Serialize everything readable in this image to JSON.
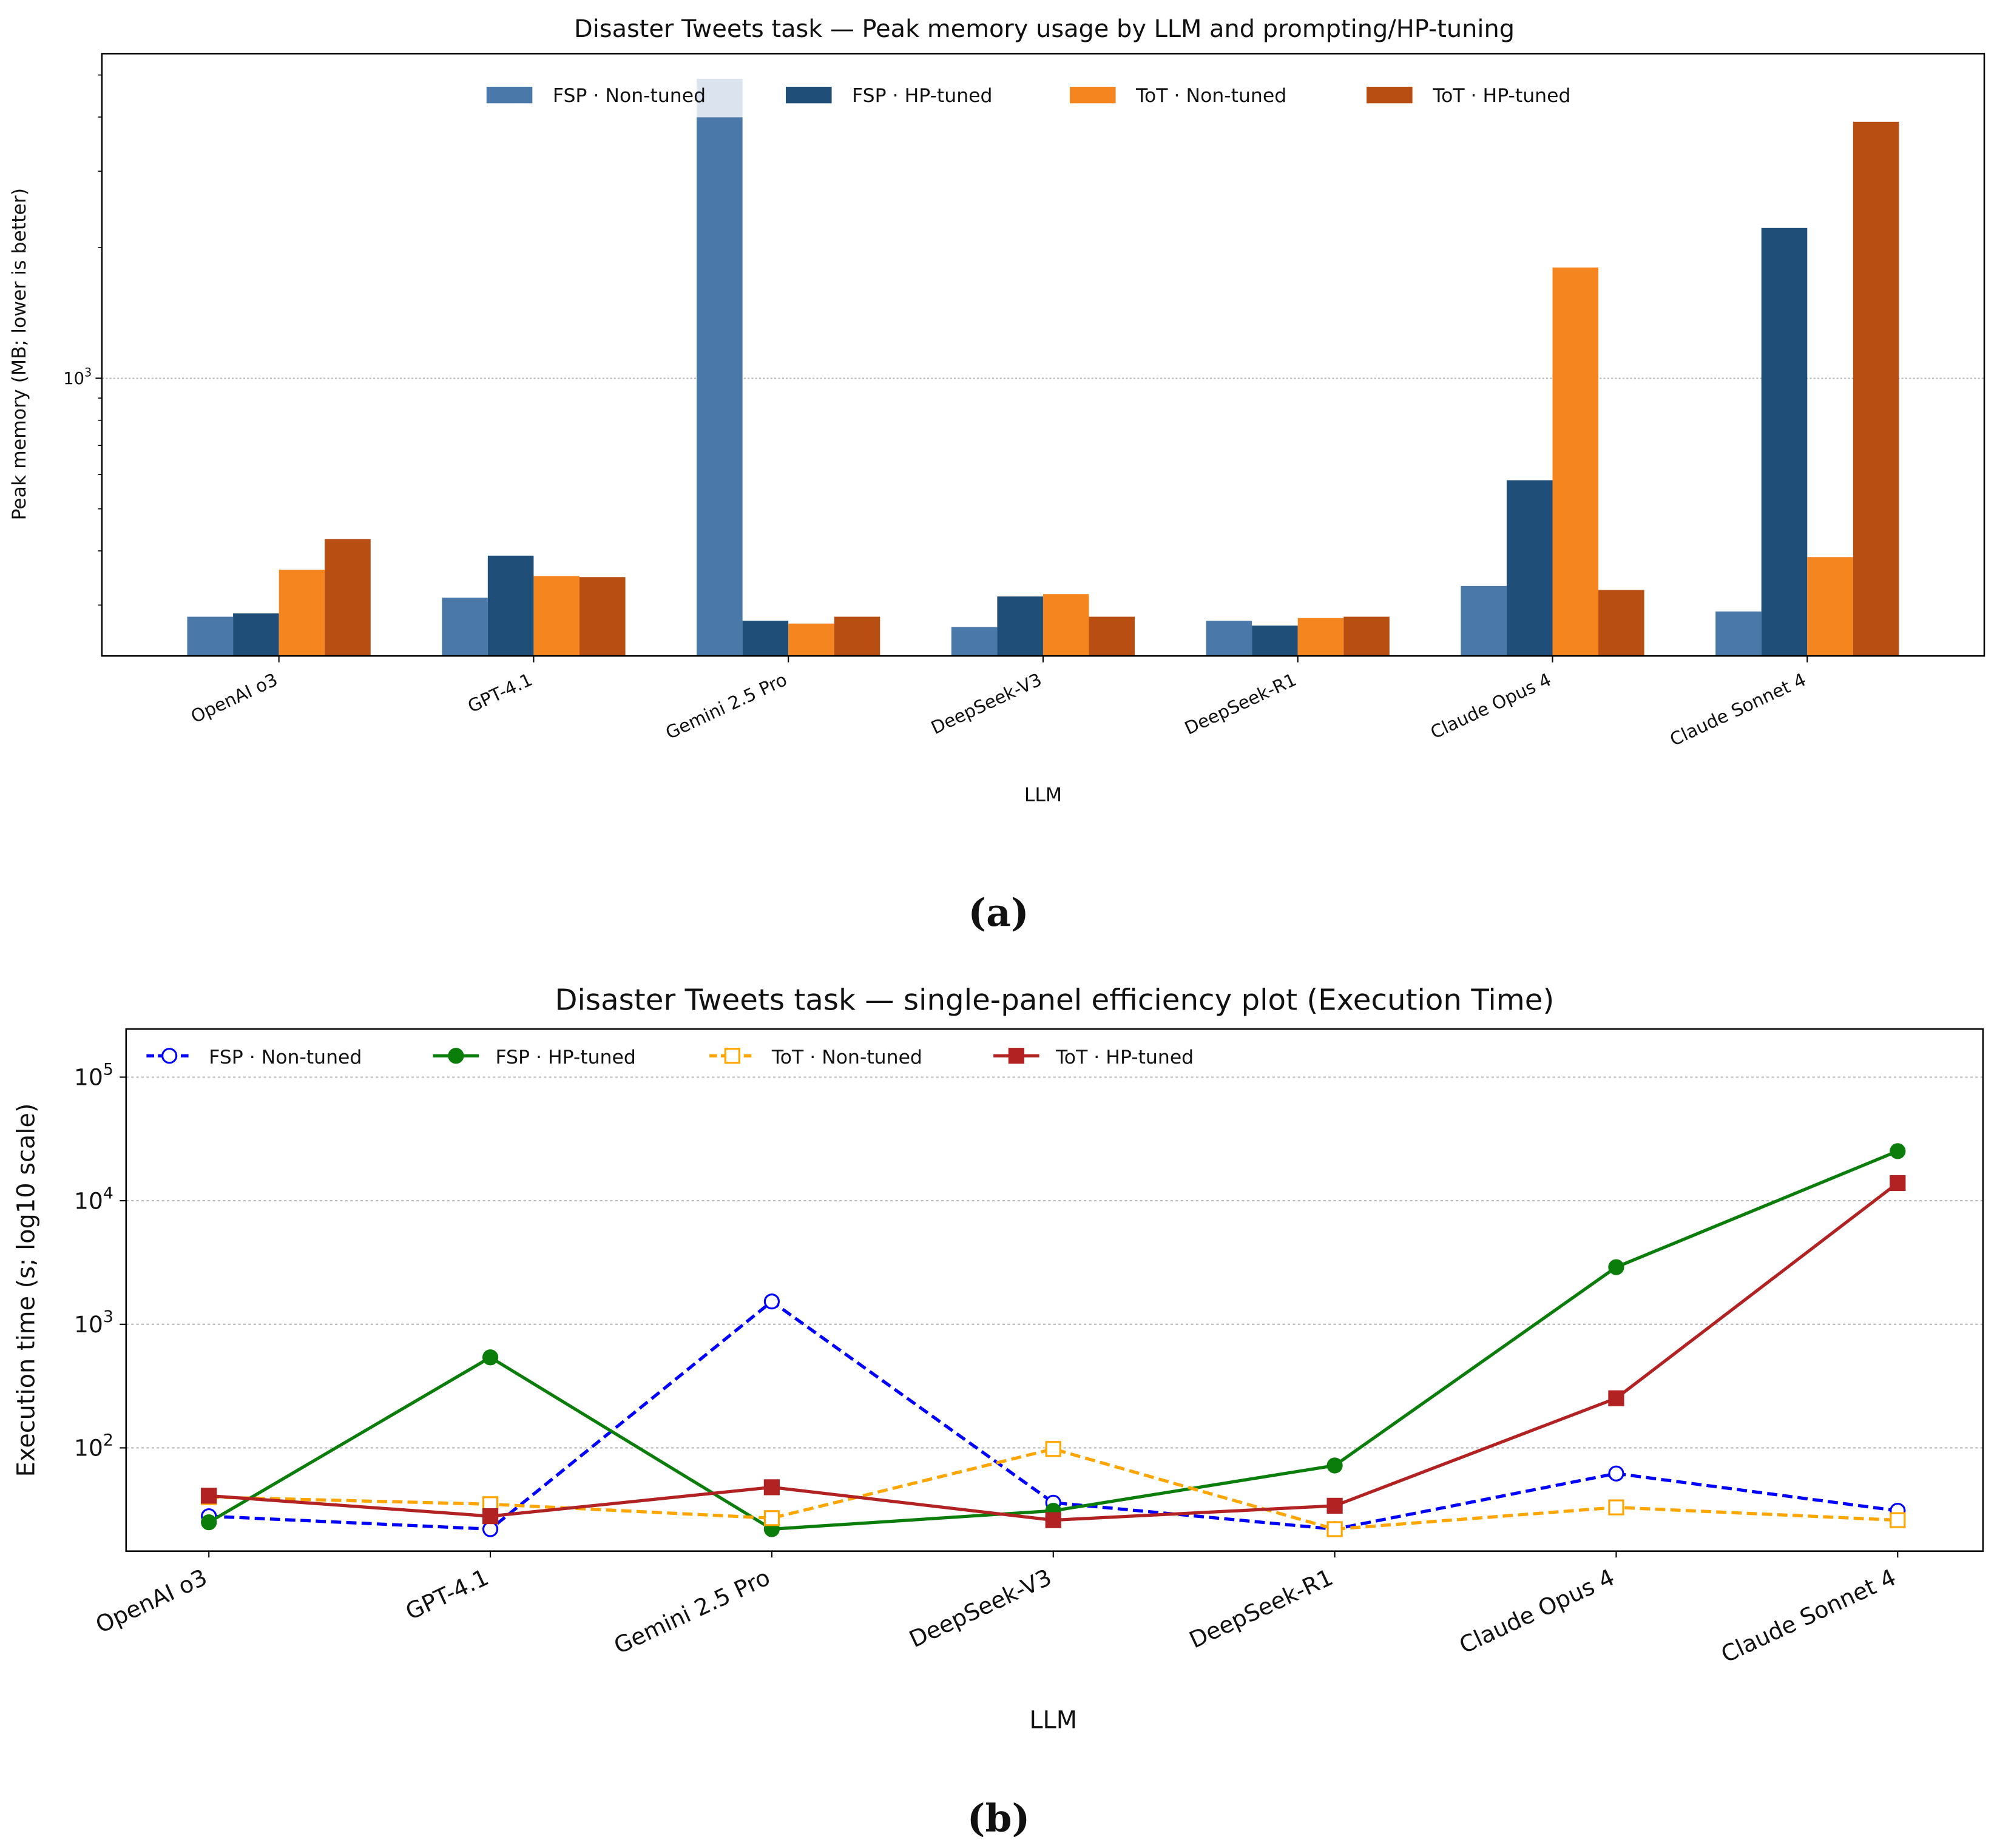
{
  "captions": {
    "a": "(a)",
    "b": "(b)"
  },
  "chart_data": [
    {
      "type": "bar",
      "title": "Disaster Tweets task — Peak memory usage by LLM and prompting/HP-tuning",
      "xlabel": "LLM",
      "ylabel": "Peak memory (MB; lower is better)",
      "yscale": "log",
      "ylim": [
        229,
        5600
      ],
      "yticks": [
        {
          "value": 1000,
          "base": "10",
          "exp": "3"
        }
      ],
      "grid": "y-major-dotted",
      "legend": "top-center",
      "categories": [
        "OpenAI o3",
        "GPT-4.1",
        "Gemini 2.5 Pro",
        "DeepSeek-V3",
        "DeepSeek-R1",
        "Claude Opus 4",
        "Claude Sonnet 4"
      ],
      "series": [
        {
          "name": "FSP · Non-tuned",
          "color": "#4a78a8",
          "values": [
            282,
            312,
            4900,
            267,
            276,
            332,
            290
          ]
        },
        {
          "name": "FSP · HP-tuned",
          "color": "#1f4e79",
          "values": [
            287,
            390,
            276,
            314,
            269,
            582,
            2220
          ]
        },
        {
          "name": "ToT · Non-tuned",
          "color": "#f5861f",
          "values": [
            362,
            350,
            272,
            318,
            280,
            1800,
            387
          ]
        },
        {
          "name": "ToT · HP-tuned",
          "color": "#b84e12",
          "values": [
            426,
            348,
            282,
            282,
            282,
            325,
            3900
          ]
        }
      ]
    },
    {
      "type": "line",
      "title": "Disaster Tweets task — single-panel efficiency plot (Execution Time)",
      "xlabel": "LLM",
      "ylabel": "Execution time (s; log10 scale)",
      "yscale": "log",
      "ylim": [
        14.6,
        245000
      ],
      "yticks": [
        {
          "value": 100,
          "base": "10",
          "exp": "2"
        },
        {
          "value": 1000,
          "base": "10",
          "exp": "3"
        },
        {
          "value": 10000,
          "base": "10",
          "exp": "4"
        },
        {
          "value": 100000,
          "base": "10",
          "exp": "5"
        }
      ],
      "grid": "y-major-dotted",
      "legend": "top-left",
      "categories": [
        "OpenAI o3",
        "GPT-4.1",
        "Gemini 2.5 Pro",
        "DeepSeek-V3",
        "DeepSeek-R1",
        "Claude Opus 4",
        "Claude Sonnet 4"
      ],
      "series": [
        {
          "name": "FSP · Non-tuned",
          "color": "#0000ff",
          "style": "dashed",
          "marker": "circle-open",
          "values": [
            28,
            22,
            1530,
            36,
            22,
            62,
            31
          ]
        },
        {
          "name": "FSP · HP-tuned",
          "color": "#0a7d0a",
          "style": "solid",
          "marker": "circle-filled",
          "values": [
            25,
            540,
            22,
            31,
            72,
            2900,
            25200
          ]
        },
        {
          "name": "ToT · Non-tuned",
          "color": "#ffa500",
          "style": "dashed",
          "marker": "square-open",
          "values": [
            40,
            35,
            27,
            98,
            22,
            33,
            26
          ]
        },
        {
          "name": "ToT · HP-tuned",
          "color": "#b22222",
          "style": "solid",
          "marker": "square-filled",
          "values": [
            41,
            28,
            48,
            26,
            34,
            252,
            13900
          ]
        }
      ]
    }
  ]
}
